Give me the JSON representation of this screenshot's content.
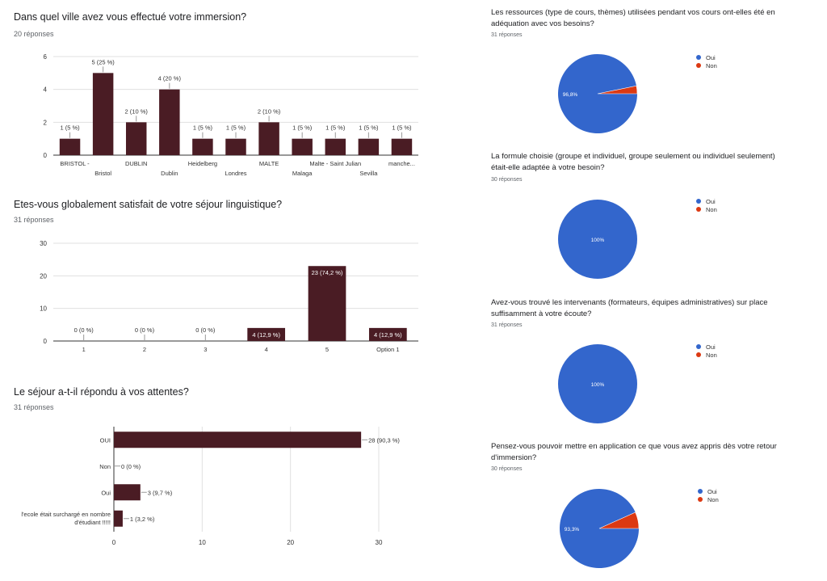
{
  "charts": {
    "ville": {
      "question": "Dans quel ville avez vous effectué votre immersion?",
      "responses": "20 réponses"
    },
    "satisfait": {
      "question": "Etes-vous globalement satisfait de votre séjour linguistique?",
      "responses": "31 réponses"
    },
    "attentes": {
      "question": "Le séjour a-t-il répondu à vos attentes?",
      "responses": "31 réponses"
    },
    "ressources": {
      "question": "Les ressources (type de cours, thèmes) utilisées pendant vos cours ont-elles été en adéquation avec vos besoins?",
      "responses": "31 réponses"
    },
    "formule": {
      "question": "La formule choisie (groupe et individuel, groupe seulement ou individuel seulement) était-elle adaptée à votre besoin?",
      "responses": "30 réponses"
    },
    "intervenants": {
      "question": "Avez-vous trouvé les intervenants (formateurs, équipes administratives) sur place suffisamment à votre écoute?",
      "responses": "31 réponses"
    },
    "application": {
      "question": "Pensez-vous pouvoir mettre en application ce que vous avez appris dès votre retour d'immersion?",
      "responses": "30 réponses"
    }
  },
  "colors": {
    "bar": "#4a1c24",
    "oui": "#3366cc",
    "non": "#dc3912"
  },
  "chart_data": [
    {
      "id": "ville",
      "type": "bar",
      "categories": [
        "BRISTOL -",
        "Bristol",
        "DUBLIN",
        "Dublin",
        "Heidelberg",
        "Londres",
        "MALTE",
        "Malaga",
        "Malte - Saint Julian",
        "Sevilla",
        "manche..."
      ],
      "values": [
        1,
        5,
        2,
        4,
        1,
        1,
        2,
        1,
        1,
        1,
        1
      ],
      "labels": [
        "1 (5 %)",
        "5 (25 %)",
        "2 (10 %)",
        "4 (20 %)",
        "1 (5 %)",
        "1 (5 %)",
        "2 (10 %)",
        "1 (5 %)",
        "1 (5 %)",
        "1 (5 %)",
        "1 (5 %)"
      ],
      "yticks": [
        "0",
        "2",
        "4",
        "6"
      ],
      "ylim": [
        0,
        6
      ],
      "grid": true
    },
    {
      "id": "satisfait",
      "type": "bar",
      "categories": [
        "1",
        "2",
        "3",
        "4",
        "5",
        "Option 1"
      ],
      "values": [
        0,
        0,
        0,
        4,
        23,
        4
      ],
      "labels": [
        "0 (0 %)",
        "0 (0 %)",
        "0 (0 %)",
        "4 (12,9 %)",
        "23 (74,2 %)",
        "4 (12,9 %)"
      ],
      "yticks": [
        "0",
        "10",
        "20",
        "30"
      ],
      "ylim": [
        0,
        30
      ],
      "grid": true
    },
    {
      "id": "attentes",
      "type": "bar",
      "orientation": "horizontal",
      "categories": [
        "OUI",
        "Non",
        "Oui",
        "l'ecole était surchargé en nombre d'étudiant !!!!!"
      ],
      "values": [
        28,
        0,
        3,
        1
      ],
      "labels": [
        "28 (90,3 %)",
        "0 (0 %)",
        "3 (9,7 %)",
        "1 (3,2 %)"
      ],
      "xticks": [
        "0",
        "10",
        "20",
        "30"
      ],
      "xlim": [
        0,
        30
      ],
      "grid": true
    },
    {
      "id": "ressources",
      "type": "pie",
      "categories": [
        "Oui",
        "Non"
      ],
      "values": [
        96.8,
        3.2
      ],
      "slice_label": "96,8%",
      "legend": "right"
    },
    {
      "id": "formule",
      "type": "pie",
      "categories": [
        "Oui",
        "Non"
      ],
      "values": [
        100,
        0
      ],
      "slice_label": "100%",
      "legend": "right"
    },
    {
      "id": "intervenants",
      "type": "pie",
      "categories": [
        "Oui",
        "Non"
      ],
      "values": [
        100,
        0
      ],
      "slice_label": "100%",
      "legend": "right"
    },
    {
      "id": "application",
      "type": "pie",
      "categories": [
        "Oui",
        "Non"
      ],
      "values": [
        93.3,
        6.7
      ],
      "slice_label": "93,3%",
      "legend": "right"
    }
  ]
}
